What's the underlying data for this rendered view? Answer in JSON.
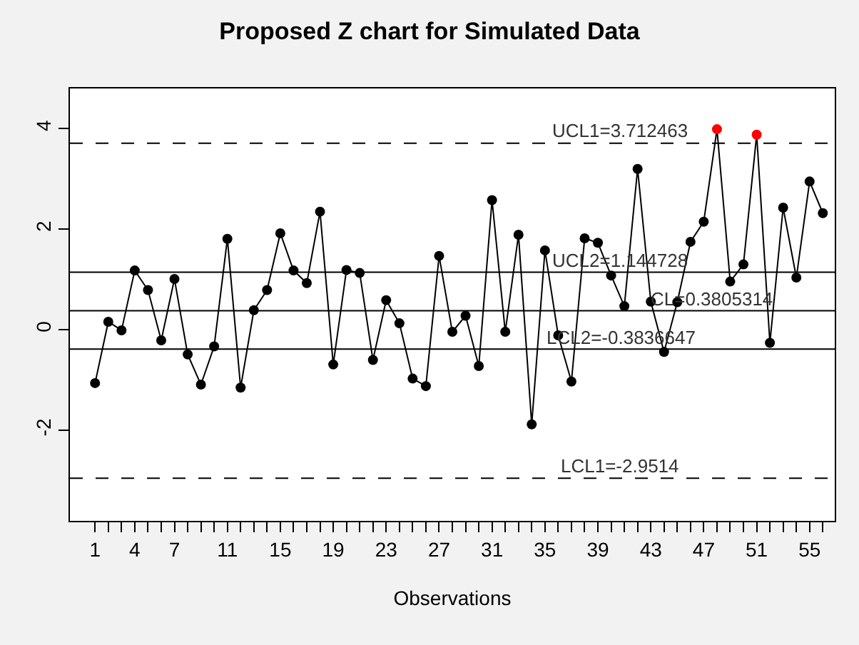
{
  "chart_data": {
    "type": "line",
    "title": "Proposed Z chart for Simulated Data",
    "xlabel": "Observations",
    "x": [
      1,
      2,
      3,
      4,
      5,
      6,
      7,
      8,
      9,
      10,
      11,
      12,
      13,
      14,
      15,
      16,
      17,
      18,
      19,
      20,
      21,
      22,
      23,
      24,
      25,
      26,
      27,
      28,
      29,
      30,
      31,
      32,
      33,
      34,
      35,
      36,
      37,
      38,
      39,
      40,
      41,
      42,
      43,
      44,
      45,
      46,
      47,
      48,
      49,
      50,
      51,
      52,
      53,
      54,
      55,
      56
    ],
    "series": [
      {
        "color": "#000000",
        "values": [
          -1.06,
          0.16,
          -0.01,
          1.18,
          0.79,
          -0.21,
          1.01,
          -0.49,
          -1.09,
          -0.33,
          1.81,
          -1.15,
          0.39,
          0.79,
          1.92,
          1.18,
          0.93,
          2.35,
          -0.69,
          1.19,
          1.13,
          -0.6,
          0.59,
          0.13,
          -0.97,
          -1.12,
          1.47,
          -0.04,
          0.28,
          -0.72,
          2.58,
          -0.04,
          1.89,
          -1.88,
          1.58,
          -0.11,
          -1.03,
          1.82,
          1.73,
          1.08,
          0.47,
          3.2,
          0.56,
          -0.44,
          0.55,
          1.75,
          2.15,
          3.99,
          0.96,
          1.3,
          3.88,
          -0.26,
          2.43,
          1.04,
          2.95,
          2.32
        ],
        "colors": [
          "#000000",
          "#000000",
          "#000000",
          "#000000",
          "#000000",
          "#000000",
          "#000000",
          "#000000",
          "#000000",
          "#000000",
          "#000000",
          "#000000",
          "#000000",
          "#000000",
          "#000000",
          "#000000",
          "#000000",
          "#000000",
          "#000000",
          "#000000",
          "#000000",
          "#000000",
          "#000000",
          "#000000",
          "#000000",
          "#000000",
          "#000000",
          "#000000",
          "#000000",
          "#000000",
          "#000000",
          "#000000",
          "#000000",
          "#000000",
          "#000000",
          "#000000",
          "#000000",
          "#000000",
          "#000000",
          "#000000",
          "#000000",
          "#000000",
          "#000000",
          "#000000",
          "#000000",
          "#000000",
          "#000000",
          "#ff0000",
          "#000000",
          "#000000",
          "#ff0000",
          "#000000",
          "#000000",
          "#000000",
          "#000000",
          "#000000"
        ]
      }
    ],
    "marker": "circle",
    "line_style": "solid",
    "xlim": [
      -0.9,
      56.9
    ],
    "xticks": [
      1,
      {
        "value": 2,
        "label": null
      },
      {
        "value": 3,
        "label": null
      },
      4,
      {
        "value": 5,
        "label": null
      },
      {
        "value": 6,
        "label": null
      },
      7,
      {
        "value": 8,
        "label": null
      },
      {
        "value": 9,
        "label": null
      },
      {
        "value": 10,
        "label": null
      },
      11,
      {
        "value": 12,
        "label": null
      },
      {
        "value": 13,
        "label": null
      },
      {
        "value": 14,
        "label": null
      },
      15,
      {
        "value": 16,
        "label": null
      },
      {
        "value": 17,
        "label": null
      },
      {
        "value": 18,
        "label": null
      },
      19,
      {
        "value": 20,
        "label": null
      },
      {
        "value": 21,
        "label": null
      },
      {
        "value": 22,
        "label": null
      },
      23,
      {
        "value": 24,
        "label": null
      },
      {
        "value": 25,
        "label": null
      },
      {
        "value": 26,
        "label": null
      },
      27,
      {
        "value": 28,
        "label": null
      },
      {
        "value": 29,
        "label": null
      },
      {
        "value": 30,
        "label": null
      },
      31,
      {
        "value": 32,
        "label": null
      },
      {
        "value": 33,
        "label": null
      },
      {
        "value": 34,
        "label": null
      },
      35,
      {
        "value": 36,
        "label": null
      },
      {
        "value": 37,
        "label": null
      },
      {
        "value": 38,
        "label": null
      },
      39,
      {
        "value": 40,
        "label": null
      },
      {
        "value": 41,
        "label": null
      },
      {
        "value": 42,
        "label": null
      },
      43,
      {
        "value": 44,
        "label": null
      },
      {
        "value": 45,
        "label": null
      },
      {
        "value": 46,
        "label": null
      },
      47,
      {
        "value": 48,
        "label": null
      },
      {
        "value": 49,
        "label": null
      },
      {
        "value": 50,
        "label": null
      },
      51,
      {
        "value": 52,
        "label": null
      },
      {
        "value": 53,
        "label": null
      },
      {
        "value": 54,
        "label": null
      },
      55,
      {
        "value": 56,
        "label": null
      }
    ],
    "ylim": [
      -3.8,
      4.8
    ],
    "yticks": [
      -2,
      0,
      2,
      4
    ],
    "grid": false,
    "ref_lines": [
      {
        "axis": "y",
        "value": 3.712463,
        "label": "UCL1=3.712463",
        "color": "#000000",
        "line_style": "dashed"
      },
      {
        "axis": "y",
        "value": 1.144728,
        "label": "UCL2=1.144728",
        "color": "#000000",
        "line_style": "solid"
      },
      {
        "axis": "y",
        "value": 0.3805314,
        "label": "CL=0.3805314",
        "color": "#000000",
        "line_style": "solid"
      },
      {
        "axis": "y",
        "value": -0.3836647,
        "label": "LCL2=-0.3836647",
        "color": "#000000",
        "line_style": "solid"
      },
      {
        "axis": "y",
        "value": -2.9514,
        "label": "LCL1=-2.9514",
        "color": "#000000",
        "line_style": "dashed"
      }
    ]
  }
}
